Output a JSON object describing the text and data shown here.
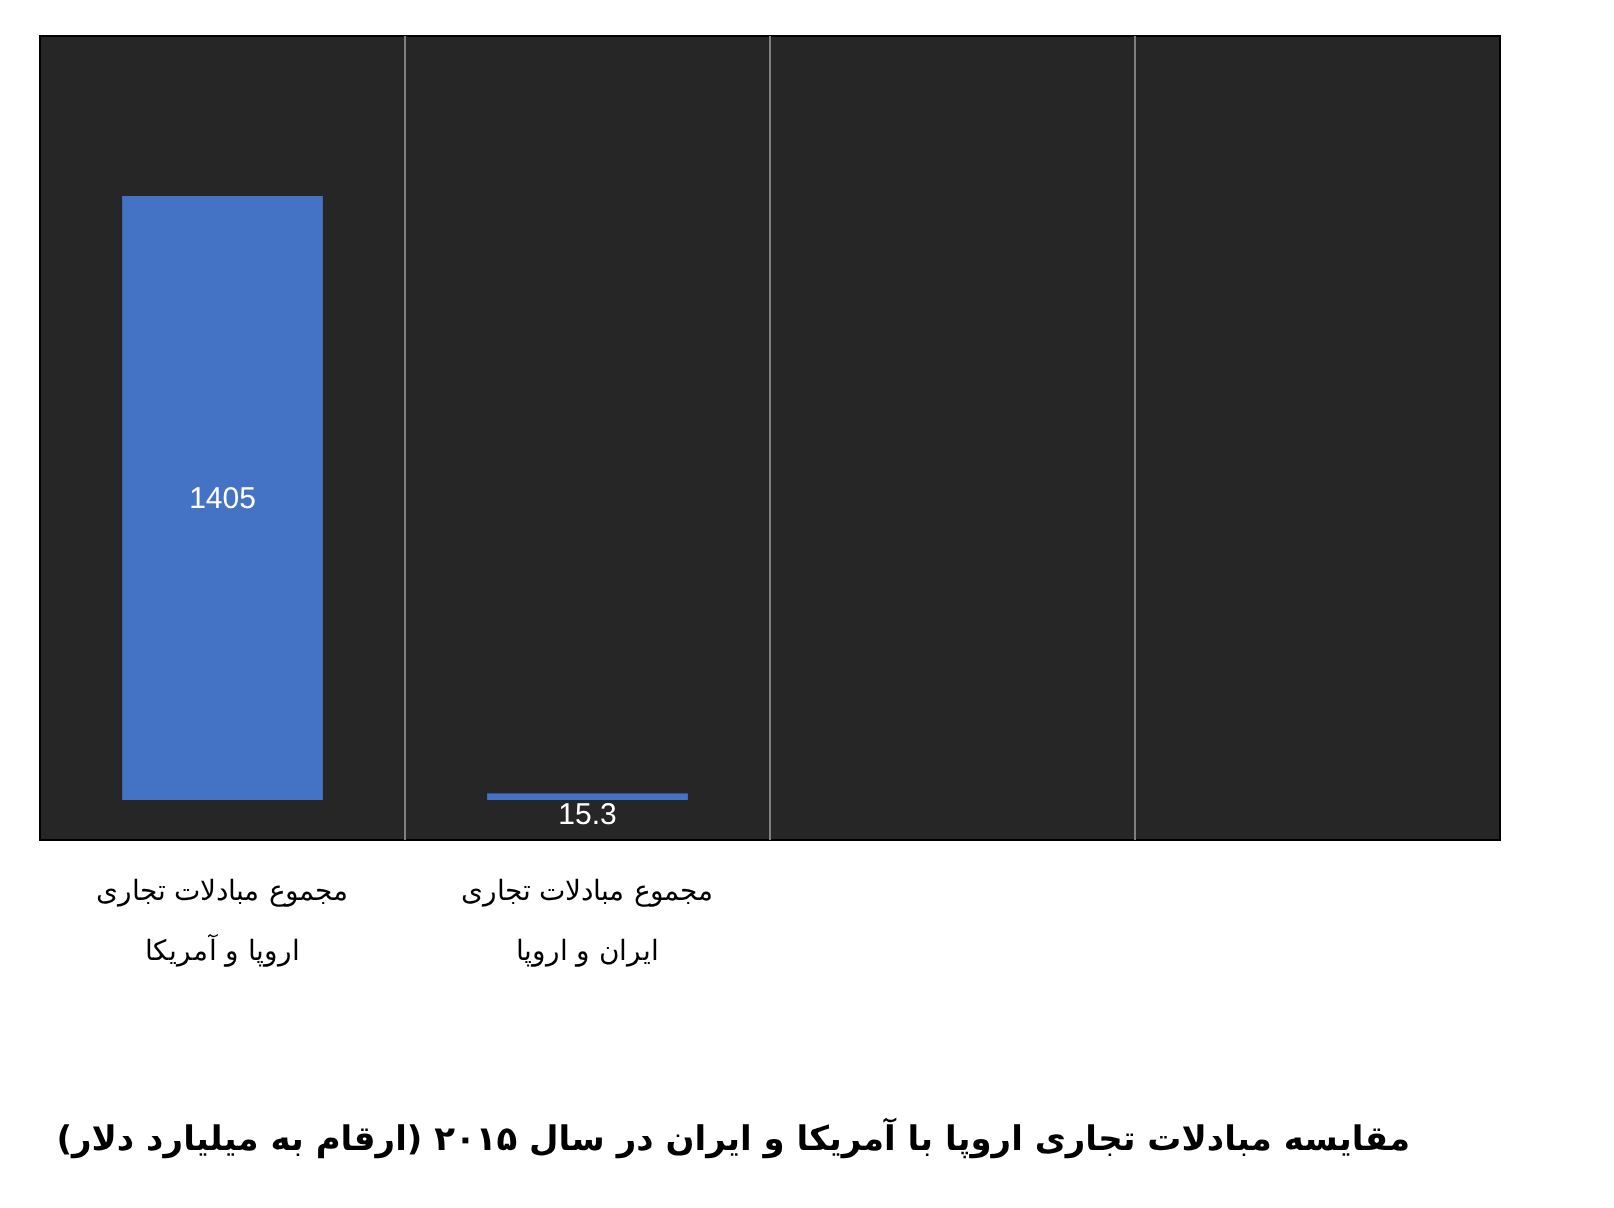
{
  "chart_data": {
    "type": "bar",
    "title": "مقایسه مبادلات تجاری اروپا با آمریکا و ایران در سال ۲۰۱۵ (ارقام به میلیارد دلار)",
    "categories": [
      "مجموع مبادلات تجاری\nاروپا و آمریکا",
      "مجموع مبادلات تجاری\nایران و اروپا",
      null,
      null
    ],
    "values": [
      1405,
      15.3,
      null,
      null
    ],
    "color": "#4472c4",
    "data_labels": true,
    "grid": "x"
  }
}
